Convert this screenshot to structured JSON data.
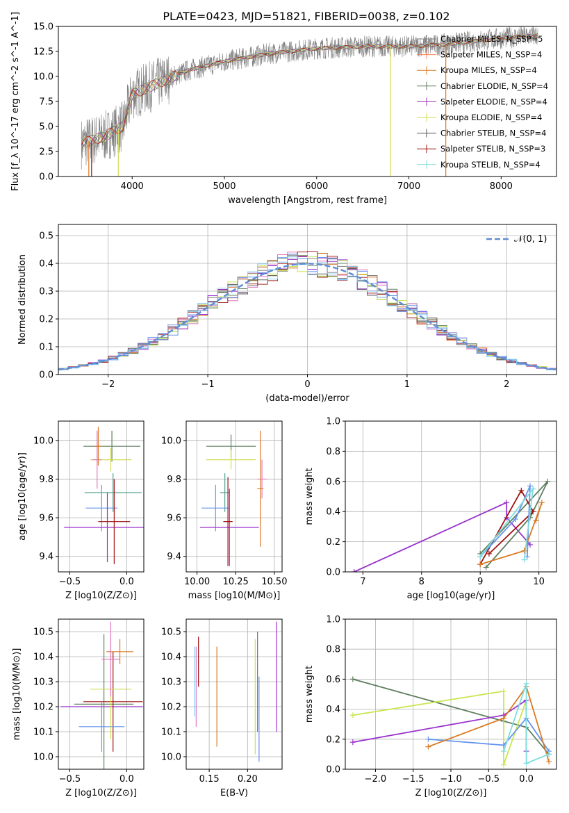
{
  "figure_title": "PLATE=0423, MJD=51821, FIBERID=0038, z=0.102",
  "colors": {
    "series": [
      "#808080",
      "#ff7f50",
      "#da7a23",
      "#5a7a5a",
      "#9b30b0",
      "#d2dc56",
      "#505050",
      "#a01010",
      "#7fdcdc"
    ],
    "hist": [
      "#808080",
      "#e377c2",
      "#d2691e",
      "#5f7f5f",
      "#9932cc",
      "#c8e650",
      "#606060",
      "#a52a2a",
      "#6495ed",
      "#87cefa"
    ],
    "gaussian": "#5f8dd3",
    "grid": "#b0b0b0"
  },
  "chart_data": [
    {
      "type": "line",
      "title": "PLATE=0423, MJD=51821, FIBERID=0038, z=0.102",
      "xlabel": "wavelength [Angstrom, rest frame]",
      "ylabel": "Flux [f_λ 10^-17 erg cm^-2 s^-1 A^-1]",
      "xlim": [
        3200,
        8600
      ],
      "ylim": [
        0,
        15
      ],
      "xticks": [
        "4000",
        "5000",
        "6000",
        "7000",
        "8000"
      ],
      "yticks": [
        "0.0",
        "2.5",
        "5.0",
        "7.5",
        "10.0",
        "12.5",
        "15.0"
      ],
      "legend_position": "top-right",
      "series": [
        {
          "name": "Chabrier MILES, N_SSP=5"
        },
        {
          "name": "Salpeter MILES, N_SSP=4"
        },
        {
          "name": "Kroupa MILES, N_SSP=4"
        },
        {
          "name": "Chabrier ELODIE, N_SSP=4"
        },
        {
          "name": "Salpeter ELODIE, N_SSP=4"
        },
        {
          "name": "Kroupa ELODIE, N_SSP=4"
        },
        {
          "name": "Chabrier STELIB, N_SSP=4"
        },
        {
          "name": "Salpeter STELIB, N_SSP=3"
        },
        {
          "name": "Kroupa STELIB, N_SSP=4"
        }
      ],
      "continuum": {
        "x": [
          3450,
          3700,
          3900,
          4000,
          4300,
          4600,
          5000,
          5500,
          6000,
          6500,
          7000,
          7400,
          7800,
          8100,
          8400
        ],
        "y": [
          3.3,
          4.0,
          5.0,
          8.2,
          9.4,
          10.6,
          11.5,
          12.3,
          12.8,
          13.0,
          13.0,
          13.2,
          13.6,
          13.9,
          14.1
        ]
      }
    },
    {
      "type": "histogram",
      "xlabel": "(data-model)/error",
      "ylabel": "Normed distribution",
      "xlim": [
        -2.5,
        2.5
      ],
      "ylim": [
        0,
        0.54
      ],
      "xticks": [
        "−2",
        "−1",
        "0",
        "1",
        "2"
      ],
      "yticks": [
        "0.0",
        "0.1",
        "0.2",
        "0.3",
        "0.4",
        "0.5"
      ],
      "legend": "𝒩(0, 1)",
      "legend_position": "top-right"
    },
    {
      "type": "scatter",
      "xlabel": "Z [log10(Z/Z⊙)]",
      "ylabel": "age [log10(age/yr)]",
      "xlim": [
        -0.6,
        0.15
      ],
      "ylim": [
        9.32,
        10.1
      ],
      "xticks": [
        "−0.5",
        "0.0"
      ],
      "yticks": [
        "9.4",
        "9.6",
        "9.8",
        "10.0"
      ],
      "points": [
        {
          "x": -0.13,
          "y": 9.97,
          "ex": 0.25,
          "ey": 0.08
        },
        {
          "x": -0.14,
          "y": 9.9,
          "ex": 0.18,
          "ey": 0.06
        },
        {
          "x": -0.12,
          "y": 9.73,
          "ex": 0.25,
          "ey": 0.1
        },
        {
          "x": -0.22,
          "y": 9.65,
          "ex": 0.14,
          "ey": 0.12
        },
        {
          "x": -0.17,
          "y": 9.55,
          "ex": 0.38,
          "ey": 0.18
        },
        {
          "x": -0.11,
          "y": 9.58,
          "ex": 0.14,
          "ey": 0.22
        },
        {
          "x": -0.26,
          "y": 9.9,
          "ex": 0.04,
          "ey": 0.15
        },
        {
          "x": -0.25,
          "y": 9.97,
          "ex": 0.03,
          "ey": 0.1
        }
      ]
    },
    {
      "type": "scatter",
      "xlabel": "mass [log10(M/M⊙)]",
      "ylabel": "",
      "xlim": [
        9.93,
        10.55
      ],
      "ylim": [
        9.32,
        10.1
      ],
      "xticks": [
        "10.00",
        "10.25",
        "10.50"
      ],
      "yticks": [
        "9.4",
        "9.6",
        "9.8",
        "10.0"
      ],
      "points": [
        {
          "x": 10.22,
          "y": 9.97,
          "ex": 0.16,
          "ey": 0.06
        },
        {
          "x": 10.22,
          "y": 9.9,
          "ex": 0.16,
          "ey": 0.05
        },
        {
          "x": 10.18,
          "y": 9.73,
          "ex": 0.03,
          "ey": 0.1
        },
        {
          "x": 10.12,
          "y": 9.65,
          "ex": 0.09,
          "ey": 0.12
        },
        {
          "x": 10.21,
          "y": 9.55,
          "ex": 0.19,
          "ey": 0.2
        },
        {
          "x": 10.2,
          "y": 9.58,
          "ex": 0.03,
          "ey": 0.23
        },
        {
          "x": 10.42,
          "y": 9.8,
          "ex": 0.03,
          "ey": 0.1
        },
        {
          "x": 10.41,
          "y": 9.75,
          "ex": 0.02,
          "ey": 0.3
        }
      ]
    },
    {
      "type": "line",
      "xlabel": "age [log10(age/yr)]",
      "ylabel": "mass weight",
      "xlim": [
        6.7,
        10.3
      ],
      "ylim": [
        0,
        1
      ],
      "xticks": [
        "7",
        "8",
        "9",
        "10"
      ],
      "yticks": [
        "0.0",
        "0.2",
        "0.4",
        "0.6",
        "0.8",
        "1.0"
      ],
      "series": [
        {
          "x": [
            6.85,
            9.45,
            9.45,
            9.85
          ],
          "y": [
            0.0,
            0.46,
            0.36,
            0.18
          ]
        },
        {
          "x": [
            9.0,
            10.15,
            9.85,
            9.1
          ],
          "y": [
            0.12,
            0.6,
            0.36,
            0.03
          ]
        },
        {
          "x": [
            9.0,
            9.7,
            9.9,
            9.15
          ],
          "y": [
            0.05,
            0.54,
            0.4,
            0.12
          ]
        },
        {
          "x": [
            9.0,
            9.6,
            9.85,
            9.8
          ],
          "y": [
            0.1,
            0.35,
            0.57,
            0.1
          ]
        },
        {
          "x": [
            9.0,
            9.75,
            10.05,
            9.95
          ],
          "y": [
            0.05,
            0.14,
            0.46,
            0.34
          ]
        },
        {
          "x": [
            9.0,
            9.9,
            9.75
          ],
          "y": [
            0.1,
            0.55,
            0.08
          ]
        }
      ]
    },
    {
      "type": "scatter",
      "xlabel": "Z [log10(Z/Z⊙)]",
      "ylabel": "mass [log10(M/M⊙)]",
      "xlim": [
        -0.6,
        0.15
      ],
      "ylim": [
        9.95,
        10.55
      ],
      "xticks": [
        "−0.5",
        "0.0"
      ],
      "yticks": [
        "10.0",
        "10.1",
        "10.2",
        "10.3",
        "10.4",
        "10.5"
      ],
      "points": [
        {
          "x": -0.22,
          "y": 10.2,
          "ex": 0.36,
          "ey": 0.0
        },
        {
          "x": -0.2,
          "y": 10.21,
          "ex": 0.26,
          "ey": 0.28
        },
        {
          "x": -0.12,
          "y": 10.22,
          "ex": 0.26,
          "ey": 0.2
        },
        {
          "x": -0.22,
          "y": 10.12,
          "ex": 0.2,
          "ey": 0.1
        },
        {
          "x": -0.14,
          "y": 10.27,
          "ex": 0.18,
          "ey": 0.2
        },
        {
          "x": -0.06,
          "y": 10.42,
          "ex": 0.12,
          "ey": 0.05
        },
        {
          "x": -0.14,
          "y": 10.39,
          "ex": 0.08,
          "ey": 0.15
        }
      ]
    },
    {
      "type": "scatter",
      "xlabel": "E(B-V)",
      "ylabel": "",
      "xlim": [
        0.12,
        0.245
      ],
      "ylim": [
        9.95,
        10.55
      ],
      "xticks": [
        "0.15",
        "0.20"
      ],
      "yticks": [
        "10.0",
        "10.1",
        "10.2",
        "10.3",
        "10.4",
        "10.5"
      ],
      "points": [
        {
          "x": 0.131,
          "y": 10.3,
          "ey": 0.14
        },
        {
          "x": 0.133,
          "y": 10.28,
          "ey": 0.16
        },
        {
          "x": 0.136,
          "y": 10.38,
          "ey": 0.1
        },
        {
          "x": 0.16,
          "y": 10.24,
          "ey": 0.2
        },
        {
          "x": 0.21,
          "y": 10.24,
          "ey": 0.23
        },
        {
          "x": 0.213,
          "y": 10.3,
          "ey": 0.2
        },
        {
          "x": 0.215,
          "y": 10.15,
          "ey": 0.17
        },
        {
          "x": 0.238,
          "y": 10.32,
          "ey": 0.22
        }
      ]
    },
    {
      "type": "line",
      "xlabel": "Z [log10(Z/Z⊙)]",
      "ylabel": "mass weight",
      "xlim": [
        -2.4,
        0.4
      ],
      "ylim": [
        0,
        1
      ],
      "xticks": [
        "−2.0",
        "−1.5",
        "−1.0",
        "−0.5",
        "0.0"
      ],
      "yticks": [
        "0.0",
        "0.2",
        "0.4",
        "0.6",
        "0.8",
        "1.0"
      ],
      "series": [
        {
          "x": [
            -2.3,
            -0.3,
            0.0,
            0.3
          ],
          "y": [
            0.6,
            0.32,
            0.28,
            0.1
          ]
        },
        {
          "x": [
            -2.3,
            -0.3,
            -0.3,
            0.0
          ],
          "y": [
            0.36,
            0.52,
            0.03,
            0.46
          ]
        },
        {
          "x": [
            -2.3,
            -0.3,
            0.0,
            0.0
          ],
          "y": [
            0.18,
            0.36,
            0.46,
            0.12
          ]
        },
        {
          "x": [
            -1.3,
            -0.3,
            0.0,
            0.3
          ],
          "y": [
            0.2,
            0.16,
            0.34,
            0.12
          ]
        },
        {
          "x": [
            -1.3,
            -0.3,
            0.0,
            0.3
          ],
          "y": [
            0.15,
            0.34,
            0.55,
            0.05
          ]
        },
        {
          "x": [
            -0.3,
            0.0,
            0.0,
            0.3
          ],
          "y": [
            0.12,
            0.57,
            0.04,
            0.1
          ]
        }
      ]
    }
  ]
}
